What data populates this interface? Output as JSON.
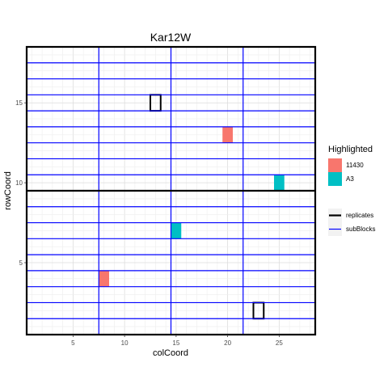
{
  "chart_data": {
    "type": "heatmap",
    "title": "Kar12W",
    "xlabel": "colCoord",
    "ylabel": "rowCoord",
    "xlim": [
      0.5,
      28.5
    ],
    "ylim": [
      0.5,
      18.5
    ],
    "x_ticks": [
      5,
      10,
      15,
      20,
      25
    ],
    "y_ticks": [
      5,
      10,
      15
    ],
    "grid": true,
    "legend_position": "right",
    "highlighted": {
      "title": "Highlighted",
      "entries": [
        {
          "label": "11430",
          "color": "#F8766D"
        },
        {
          "label": "A3",
          "color": "#00BFC4"
        }
      ],
      "cells": [
        {
          "entry": "11430",
          "col": 20,
          "row": 13
        },
        {
          "entry": "11430",
          "col": 8,
          "row": 4
        },
        {
          "entry": "A3",
          "col": 25,
          "row": 10
        },
        {
          "entry": "A3",
          "col": 15,
          "row": 7
        }
      ]
    },
    "outlined_cells": [
      {
        "col": 13,
        "row": 15
      },
      {
        "col": 23,
        "row": 2
      }
    ],
    "replicates": {
      "label": "replicates",
      "color": "#000000",
      "vertical_boundaries": [],
      "horizontal_boundaries": [
        9.5
      ]
    },
    "subBlocks": {
      "label": "subBlocks",
      "color": "#0000FF",
      "vertical_boundaries": [
        7.5,
        14.5,
        21.5
      ],
      "horizontal_boundaries": [
        1.5,
        2.5,
        3.5,
        4.5,
        5.5,
        6.5,
        7.5,
        8.5,
        10.5,
        11.5,
        12.5,
        13.5,
        14.5,
        15.5,
        16.5,
        17.5
      ]
    }
  }
}
